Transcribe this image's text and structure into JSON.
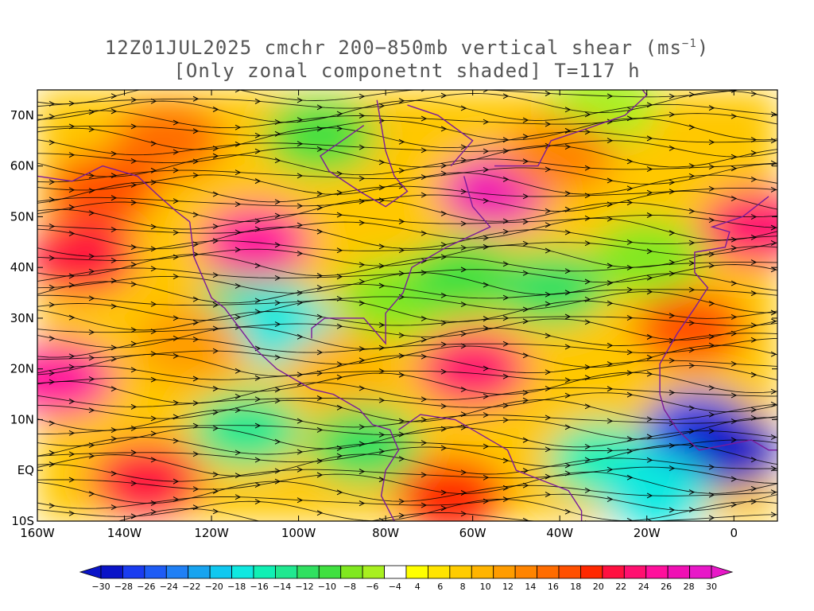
{
  "title": {
    "line1": "12Z01JUL2025 cmchr 200−850mb vertical shear (ms",
    "line1_sup": "−1",
    "line1_end": ")",
    "line2": "[Only zonal componetnt shaded] T=117 h"
  },
  "axes": {
    "lon_min": -160,
    "lon_max": 10,
    "lat_min": -10,
    "lat_max": 75,
    "x_ticks": [
      {
        "value": -160,
        "label": "160W"
      },
      {
        "value": -140,
        "label": "140W"
      },
      {
        "value": -120,
        "label": "120W"
      },
      {
        "value": -100,
        "label": "100W"
      },
      {
        "value": -80,
        "label": "80W"
      },
      {
        "value": -60,
        "label": "60W"
      },
      {
        "value": -40,
        "label": "40W"
      },
      {
        "value": -20,
        "label": "20W"
      },
      {
        "value": 0,
        "label": "0"
      }
    ],
    "y_ticks": [
      {
        "value": -10,
        "label": "10S"
      },
      {
        "value": 0,
        "label": "EQ"
      },
      {
        "value": 10,
        "label": "10N"
      },
      {
        "value": 20,
        "label": "20N"
      },
      {
        "value": 30,
        "label": "30N"
      },
      {
        "value": 40,
        "label": "40N"
      },
      {
        "value": 50,
        "label": "50N"
      },
      {
        "value": 60,
        "label": "60N"
      },
      {
        "value": 70,
        "label": "70N"
      }
    ]
  },
  "colorbar": {
    "labels": [
      "−30",
      "−28",
      "−26",
      "−24",
      "−22",
      "−20",
      "−18",
      "−16",
      "−14",
      "−12",
      "−10",
      "−8",
      "−6",
      "−4",
      "4",
      "6",
      "8",
      "10",
      "12",
      "14",
      "16",
      "18",
      "20",
      "22",
      "24",
      "26",
      "28",
      "30"
    ],
    "colors": [
      "#0a14c8",
      "#1a3cf0",
      "#1e5cf5",
      "#2080f5",
      "#18a4f0",
      "#10c8f0",
      "#10e8e0",
      "#10f0b4",
      "#20e890",
      "#30e060",
      "#40e040",
      "#80e820",
      "#a8f020",
      "#ffffff",
      "#ffff00",
      "#ffe400",
      "#ffcc00",
      "#ffb400",
      "#ff9c00",
      "#ff8400",
      "#ff6c00",
      "#ff5000",
      "#ff2800",
      "#ff1040",
      "#ff1070",
      "#ff109c",
      "#f010b4",
      "#e818c8"
    ]
  },
  "fields": [
    {
      "lon": -110,
      "lat": 32,
      "value": -14
    },
    {
      "lon": -104,
      "lat": 28,
      "value": -18
    },
    {
      "lon": -78,
      "lat": 34,
      "value": -8
    },
    {
      "lon": -62,
      "lat": 38,
      "value": -10
    },
    {
      "lon": -42,
      "lat": 36,
      "value": -12
    },
    {
      "lon": -20,
      "lat": 42,
      "value": -8
    },
    {
      "lon": -95,
      "lat": 66,
      "value": -10
    },
    {
      "lon": -30,
      "lat": 72,
      "value": -6
    },
    {
      "lon": -112,
      "lat": 8,
      "value": -14
    },
    {
      "lon": -85,
      "lat": 5,
      "value": -12
    },
    {
      "lon": -30,
      "lat": 2,
      "value": -16
    },
    {
      "lon": -8,
      "lat": 8,
      "value": -28
    },
    {
      "lon": -2,
      "lat": 4,
      "value": -30
    },
    {
      "lon": -18,
      "lat": -4,
      "value": -18
    },
    {
      "lon": -55,
      "lat": 55,
      "value": 28
    },
    {
      "lon": -110,
      "lat": 45,
      "value": 26
    },
    {
      "lon": -150,
      "lat": 42,
      "value": 22
    },
    {
      "lon": -60,
      "lat": 20,
      "value": 24
    },
    {
      "lon": -155,
      "lat": 18,
      "value": 26
    },
    {
      "lon": -135,
      "lat": -2,
      "value": 22
    },
    {
      "lon": -65,
      "lat": -5,
      "value": 20
    },
    {
      "lon": 5,
      "lat": 48,
      "value": 24
    },
    {
      "lon": -10,
      "lat": 28,
      "value": 18
    },
    {
      "lon": -130,
      "lat": 65,
      "value": 16
    },
    {
      "lon": -145,
      "lat": 55,
      "value": 18
    },
    {
      "lon": -90,
      "lat": 20,
      "value": 10
    },
    {
      "lon": -40,
      "lat": 62,
      "value": 14
    },
    {
      "lon": -125,
      "lat": 25,
      "value": 12
    }
  ]
}
